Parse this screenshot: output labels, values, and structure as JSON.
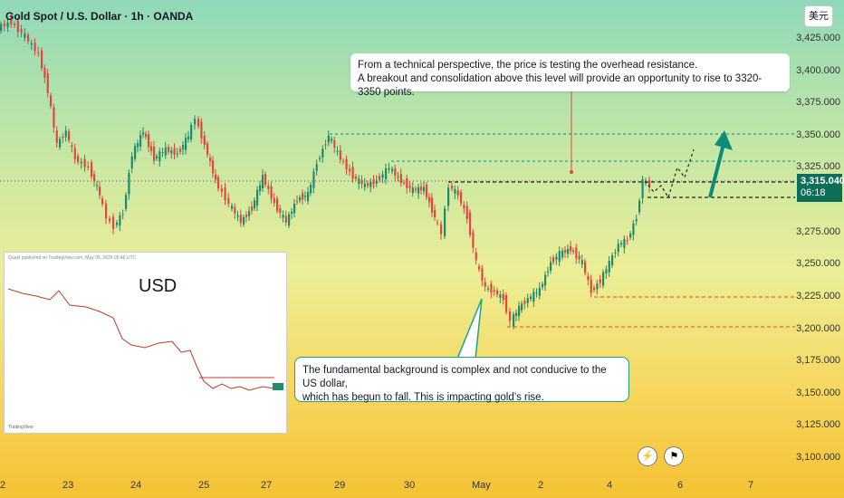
{
  "chart": {
    "title": "Gold Spot / U.S. Dollar · 1h · OANDA",
    "currency_button": "美元",
    "last_price": "3,315.040",
    "countdown": "06:18",
    "price_axis": [
      "3,425.000",
      "3,400.000",
      "3,375.000",
      "3,350.000",
      "3,325.000",
      "3,275.000",
      "3,250.000",
      "3,225.000",
      "3,200.000",
      "3,175.000",
      "3,150.000",
      "3,125.000",
      "3,100.000"
    ],
    "date_axis": [
      "2",
      "23",
      "24",
      "25",
      "27",
      "29",
      "30",
      "May",
      "2",
      "4",
      "6",
      "7"
    ],
    "colors": {
      "up": "#1f8a70",
      "down": "#e0483f",
      "accent": "#0d8a79"
    }
  },
  "annotations": {
    "top_note_line1": "From a technical perspective, the price is testing the overhead resistance.",
    "top_note_line2": "A breakout and consolidation above this level will provide an opportunity to rise to 3320-3350 points.",
    "bottom_note_line1": "The fundamental background is complex and not conducive to the US dollar,",
    "bottom_note_line2": " which has begun to fall. This is impacting gold’s rise."
  },
  "inset": {
    "label": "USD",
    "source_text": "Quaid published on TradingView.com, May 05, 2025 05:46 UTC",
    "foot_text": "TradingView"
  },
  "toolbar": {
    "flash_icon": "⚡",
    "flag_icon": "⚑"
  }
}
